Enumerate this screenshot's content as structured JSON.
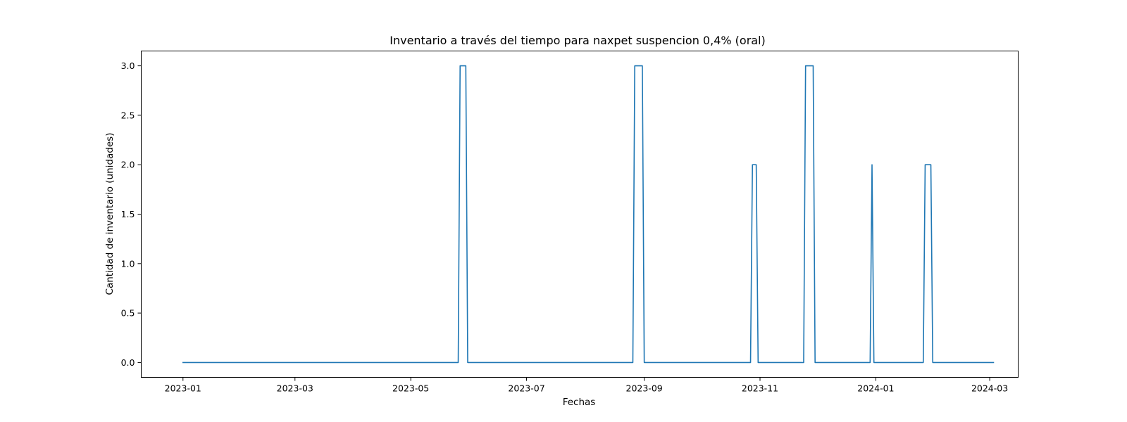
{
  "chart_data": {
    "type": "line",
    "title": "Inventario a través del tiempo para naxpet suspencion 0,4%  (oral)",
    "xlabel": "Fechas",
    "ylabel": "Cantidad de inventario (unidades)",
    "x_type": "date",
    "xlim": [
      "2022-12-10",
      "2024-03-16"
    ],
    "ylim": [
      -0.15,
      3.15
    ],
    "x_ticks": [
      "2023-01-01",
      "2023-03-01",
      "2023-05-01",
      "2023-07-01",
      "2023-09-01",
      "2023-11-01",
      "2024-01-01",
      "2024-03-01"
    ],
    "x_tick_labels": [
      "2023-01",
      "2023-03",
      "2023-05",
      "2023-07",
      "2023-09",
      "2023-11",
      "2024-01",
      "2024-03"
    ],
    "y_ticks": [
      0.0,
      0.5,
      1.0,
      1.5,
      2.0,
      2.5,
      3.0
    ],
    "y_tick_labels": [
      "0.0",
      "0.5",
      "1.0",
      "1.5",
      "2.0",
      "2.5",
      "3.0"
    ],
    "grid": false,
    "legend": false,
    "series": [
      {
        "color": "#1f77b4",
        "x": [
          "2023-01-01",
          "2023-05-26",
          "2023-05-27",
          "2023-05-30",
          "2023-05-31",
          "2023-08-26",
          "2023-08-27",
          "2023-08-31",
          "2023-09-01",
          "2023-10-27",
          "2023-10-28",
          "2023-10-30",
          "2023-10-31",
          "2023-11-24",
          "2023-11-25",
          "2023-11-29",
          "2023-11-30",
          "2023-12-29",
          "2023-12-30",
          "2023-12-31",
          "2024-01-26",
          "2024-01-27",
          "2024-01-30",
          "2024-01-31",
          "2024-03-03"
        ],
        "y": [
          0,
          0,
          3,
          3,
          0,
          0,
          3,
          3,
          0,
          0,
          2,
          2,
          0,
          0,
          3,
          3,
          0,
          0,
          2,
          0,
          0,
          2,
          2,
          0,
          0
        ]
      }
    ]
  }
}
